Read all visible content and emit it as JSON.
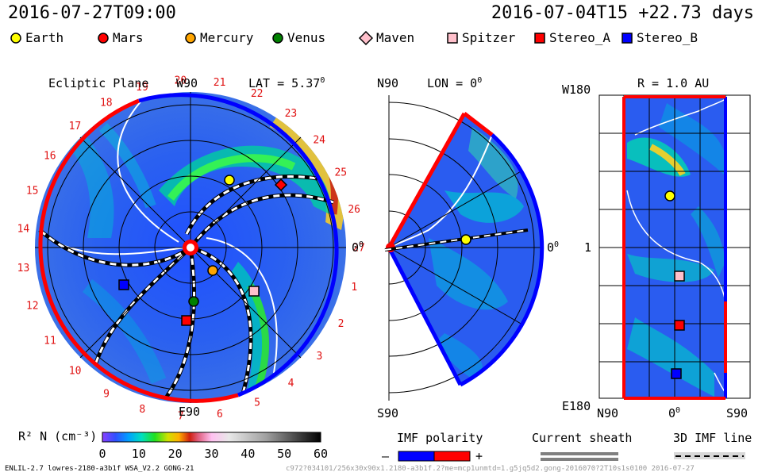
{
  "header": {
    "time": "2016-07-27T09:00",
    "run_info": "2016-07-04T15 +22.73 days"
  },
  "legend": [
    {
      "name": "Earth",
      "marker": "circle",
      "color": "#ffff00"
    },
    {
      "name": "Mars",
      "marker": "diamond",
      "color": "#ff0000"
    },
    {
      "name": "Mercury",
      "marker": "circle",
      "color": "#ffa500"
    },
    {
      "name": "Venus",
      "marker": "circle",
      "color": "#008000"
    },
    {
      "name": "Maven",
      "marker": "diamond",
      "color": "#ffc0cb"
    },
    {
      "name": "Spitzer",
      "marker": "square",
      "color": "#ffc0cb"
    },
    {
      "name": "Stereo_A",
      "marker": "square",
      "color": "#ff0000"
    },
    {
      "name": "Stereo_B",
      "marker": "square",
      "color": "#0000ff"
    }
  ],
  "panels": {
    "ecliptic": {
      "title": "Ecliptic Plane",
      "top_label": "W90",
      "lat_label": "LAT = 5.37",
      "bottom_label": "E90",
      "right_label": "0"
    },
    "meridional": {
      "top_label": "N90",
      "lon_label": "LON = 0",
      "bottom_label": "S90",
      "right_label": "0"
    },
    "mercator": {
      "r_label": "R = 1.0 AU",
      "y_top": "W180",
      "y_mid": "1",
      "y_bottom": "E180",
      "x_left": "N90",
      "x_mid": "0",
      "x_right": "S90"
    }
  },
  "chart_data": {
    "type": "heatmap",
    "colorbar": {
      "label": "R² N (cm⁻³)",
      "ticks": [
        "0",
        "10",
        "20",
        "30",
        "40",
        "50",
        "60"
      ],
      "range": [
        0,
        60
      ]
    },
    "carrington_labels": [
      "1",
      "2",
      "3",
      "4",
      "5",
      "6",
      "7",
      "8",
      "9",
      "10",
      "11",
      "12",
      "13",
      "14",
      "15",
      "16",
      "17",
      "18",
      "19",
      "20",
      "21",
      "22",
      "23",
      "24",
      "25",
      "26",
      "27"
    ],
    "ecliptic_positions": [
      {
        "body": "Earth",
        "r_au": 1.0
      },
      {
        "body": "Mars",
        "r_au": 1.52
      },
      {
        "body": "Mercury",
        "r_au": 0.32
      },
      {
        "body": "Venus",
        "r_au": 0.72
      },
      {
        "body": "Spitzer",
        "r_au": 1.01
      },
      {
        "body": "Stereo_A",
        "r_au": 0.96
      },
      {
        "body": "Stereo_B",
        "r_au": 1.0
      }
    ]
  },
  "bottom_legends": {
    "imf_polarity": {
      "title": "IMF polarity",
      "minus": "–",
      "plus": "+"
    },
    "current_sheath": {
      "title": "Current sheath"
    },
    "imf_line": {
      "title": "3D IMF line"
    }
  },
  "footer": {
    "left": "ENLIL-2.7 lowres-2180-a3b1f WSA_V2.2 GONG-21",
    "right": "c972?034101/256x30x90x1.2180-a3b1f.2?me=mcp1unmtd=1.g5jq5d2.gong-2016070?2T10s1s0100   2016-07-27"
  }
}
